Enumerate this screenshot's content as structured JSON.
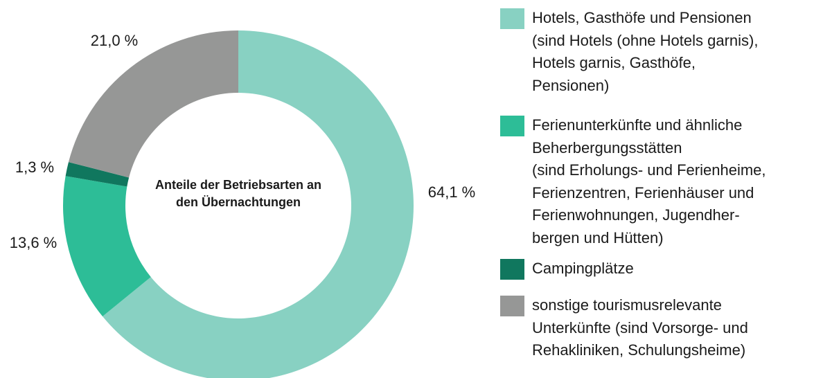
{
  "chart_data": {
    "type": "donut",
    "title": "Anteile der Betriebsarten an den Übernachtungen",
    "categories": [
      "Hotels, Gasthöfe und Pensionen\n(sind Hotels (ohne Hotels garnis),\nHotels garnis, Gasthöfe,\nPensionen)",
      "Ferienunterkünfte und ähnliche\nBeherbergungsstätten\n(sind Erholungs- und Ferienheime,\nFerienzentren, Ferienhäuser und\nFerienwohnungen, Jugendher-\nbergen und Hütten)",
      "Campingplätze",
      "sonstige tourismusrelevante\nUnterkünfte (sind Vorsorge- und\nRehakliniken, Schulungsheime)"
    ],
    "values": [
      64.1,
      13.6,
      1.3,
      21.0
    ],
    "value_labels": [
      "64,1 %",
      "13,6 %",
      "1,3 %",
      "21,0 %"
    ],
    "colors": [
      "#88d1c2",
      "#2dbd97",
      "#10775e",
      "#969796"
    ]
  }
}
